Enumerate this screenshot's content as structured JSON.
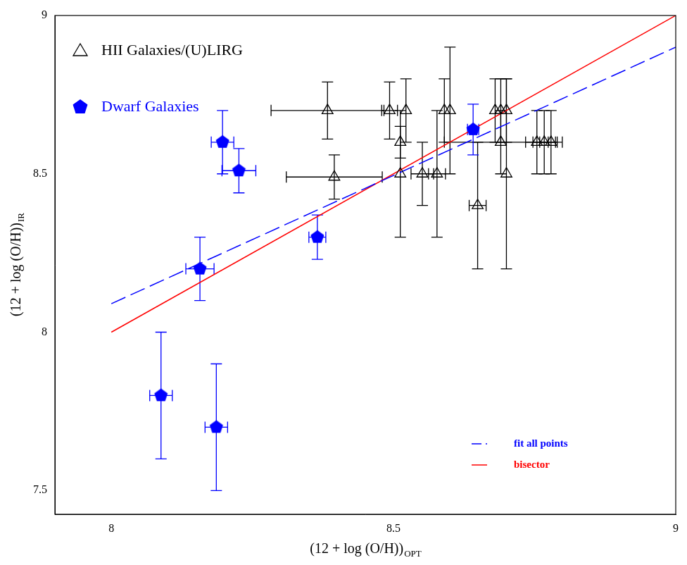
{
  "chart_data": {
    "type": "scatter",
    "xlabel": "(12 + log (O/H))",
    "xlabel_subscript": "OPT",
    "ylabel": "(12 + log (O/H))",
    "ylabel_subscript": "IR",
    "xlim": [
      7.9,
      9
    ],
    "ylim": [
      7.425,
      9
    ],
    "xticks": [
      8,
      8.5,
      9
    ],
    "yticks": [
      7.5,
      8,
      8.5,
      9
    ],
    "grid": false,
    "legend": "upper left",
    "series": [
      {
        "name": "HII Galaxies/(U)LIRG",
        "color": "#000000",
        "marker": "triangle",
        "x": [
          8.383,
          8.395,
          8.493,
          8.522,
          8.512,
          8.512,
          8.551,
          8.59,
          8.6,
          8.577,
          8.649,
          8.68,
          8.69,
          8.7,
          8.69,
          8.7,
          8.754,
          8.767,
          8.779
        ],
        "values": [
          8.7,
          8.49,
          8.7,
          8.7,
          8.6,
          8.5,
          8.5,
          8.7,
          8.7,
          8.5,
          8.4,
          8.7,
          8.7,
          8.7,
          8.6,
          8.5,
          8.6,
          8.6,
          8.6
        ],
        "xerr": [
          0.1,
          0.085,
          0.014,
          null,
          null,
          null,
          0.02,
          null,
          null,
          0.015,
          0.015,
          null,
          null,
          null,
          0.1,
          null,
          0.02,
          0.02,
          0.02
        ],
        "yerr": [
          0.09,
          0.07,
          0.09,
          0.1,
          0.05,
          0.2,
          0.1,
          0.1,
          0.2,
          0.2,
          0.2,
          0.1,
          0.1,
          0.1,
          0.1,
          0.3,
          0.1,
          0.1,
          0.1
        ]
      },
      {
        "name": "Dwarf Galaxies",
        "color": "#0000ff",
        "marker": "pentagon",
        "x": [
          8.088,
          8.186,
          8.157,
          8.197,
          8.226,
          8.365,
          8.641
        ],
        "values": [
          7.8,
          7.7,
          8.2,
          8.6,
          8.51,
          8.3,
          8.64
        ],
        "xerr": [
          0.02,
          0.02,
          0.025,
          0.02,
          0.03,
          0.015,
          0.01
        ],
        "yerr": [
          0.2,
          0.2,
          0.1,
          0.1,
          0.07,
          0.07,
          0.08
        ]
      },
      {
        "name": "fit all points",
        "type": "line",
        "line_style": "dashed",
        "color": "#0000ff",
        "x": [
          8,
          9
        ],
        "values": [
          8.09,
          8.9
        ]
      },
      {
        "name": "bisector",
        "type": "line",
        "line_style": "solid",
        "color": "#ff0000",
        "x": [
          8,
          9
        ],
        "values": [
          8,
          9
        ]
      }
    ]
  }
}
